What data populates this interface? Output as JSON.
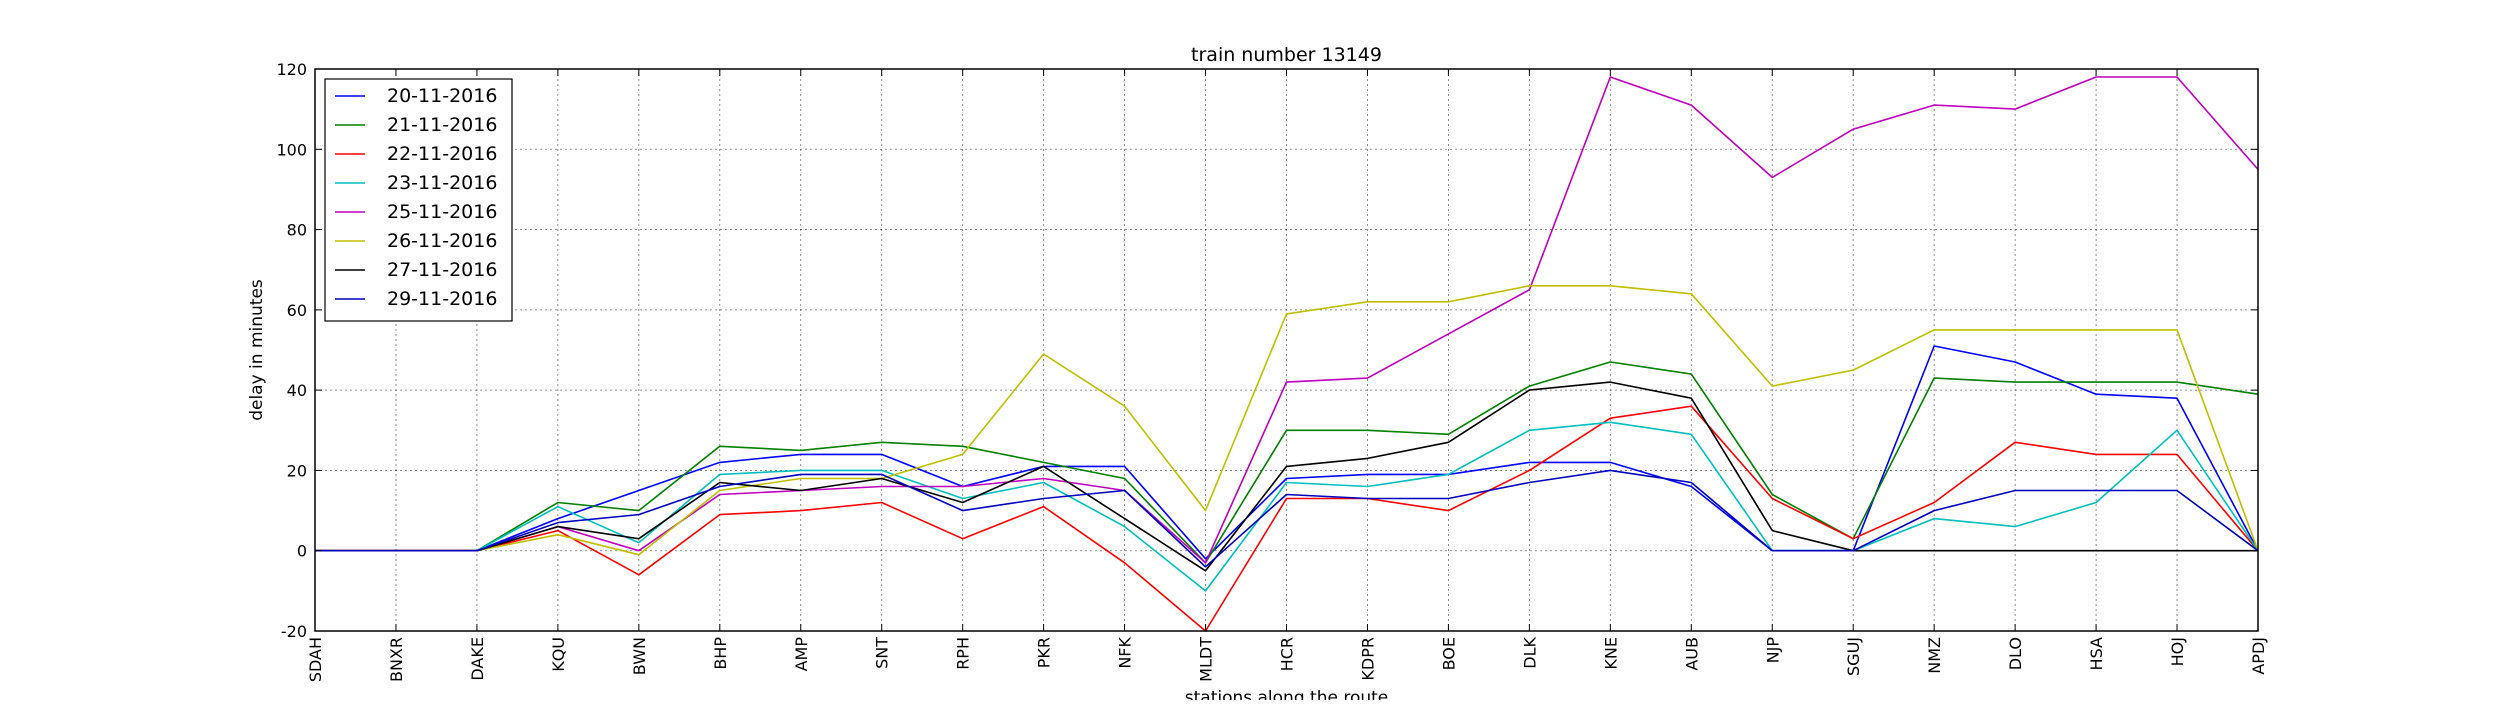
{
  "chart_data": {
    "type": "line",
    "title": "train number 13149",
    "xlabel": "stations along the route",
    "ylabel": "delay in minutes",
    "ylim": [
      -20,
      120
    ],
    "yticks": [
      -20,
      0,
      20,
      40,
      60,
      80,
      100,
      120
    ],
    "grid": true,
    "legend_position": "top-left",
    "categories": [
      "SDAH",
      "BNXR",
      "DAKE",
      "KQU",
      "BWN",
      "BHP",
      "AMP",
      "SNT",
      "RPH",
      "PKR",
      "NFK",
      "MLDT",
      "HCR",
      "KDPR",
      "BOE",
      "DLK",
      "KNE",
      "AUB",
      "NJP",
      "SGUJ",
      "NMZ",
      "DLO",
      "HSA",
      "HOJ",
      "APDJ"
    ],
    "series": [
      {
        "name": "20-11-2016",
        "color": "#0000ff",
        "values": [
          0,
          0,
          0,
          8,
          15,
          22,
          24,
          24,
          16,
          21,
          21,
          -2,
          18,
          19,
          19,
          22,
          22,
          16,
          0,
          0,
          51,
          47,
          39,
          38,
          0
        ]
      },
      {
        "name": "21-11-2016",
        "color": "#008000",
        "values": [
          0,
          0,
          0,
          12,
          10,
          26,
          25,
          27,
          26,
          22,
          18,
          -3,
          30,
          30,
          29,
          41,
          47,
          44,
          14,
          3,
          43,
          42,
          42,
          42,
          39
        ]
      },
      {
        "name": "22-11-2016",
        "color": "#ff0000",
        "values": [
          0,
          0,
          0,
          5,
          -6,
          9,
          10,
          12,
          3,
          11,
          -3,
          -20,
          13,
          13,
          10,
          20,
          33,
          36,
          13,
          3,
          12,
          27,
          24,
          24,
          0
        ]
      },
      {
        "name": "23-11-2016",
        "color": "#00bfbf",
        "values": [
          0,
          0,
          0,
          11,
          2,
          19,
          20,
          20,
          13,
          17,
          6,
          -10,
          17,
          16,
          19,
          30,
          32,
          29,
          0,
          0,
          8,
          6,
          12,
          30,
          0
        ]
      },
      {
        "name": "25-11-2016",
        "color": "#bf00bf",
        "values": [
          0,
          0,
          0,
          6,
          0,
          14,
          15,
          16,
          16,
          18,
          15,
          -3,
          42,
          43,
          54,
          65,
          118,
          111,
          93,
          105,
          111,
          110,
          118,
          118,
          95
        ]
      },
      {
        "name": "26-11-2016",
        "color": "#bfbf00",
        "values": [
          0,
          0,
          0,
          4,
          -1,
          15,
          18,
          18,
          24,
          49,
          36,
          10,
          59,
          62,
          62,
          66,
          66,
          64,
          41,
          45,
          55,
          55,
          55,
          55,
          0
        ]
      },
      {
        "name": "27-11-2016",
        "color": "#000000",
        "values": [
          0,
          0,
          0,
          6,
          3,
          17,
          15,
          18,
          12,
          21,
          8,
          -5,
          21,
          23,
          27,
          40,
          42,
          38,
          5,
          0,
          0,
          0,
          0,
          0,
          0
        ]
      },
      {
        "name": "29-11-2016",
        "color": "#0000bf",
        "values": [
          0,
          0,
          0,
          7,
          9,
          16,
          19,
          19,
          10,
          13,
          15,
          -4,
          14,
          13,
          13,
          17,
          20,
          17,
          0,
          0,
          10,
          15,
          15,
          15,
          0
        ]
      }
    ]
  }
}
